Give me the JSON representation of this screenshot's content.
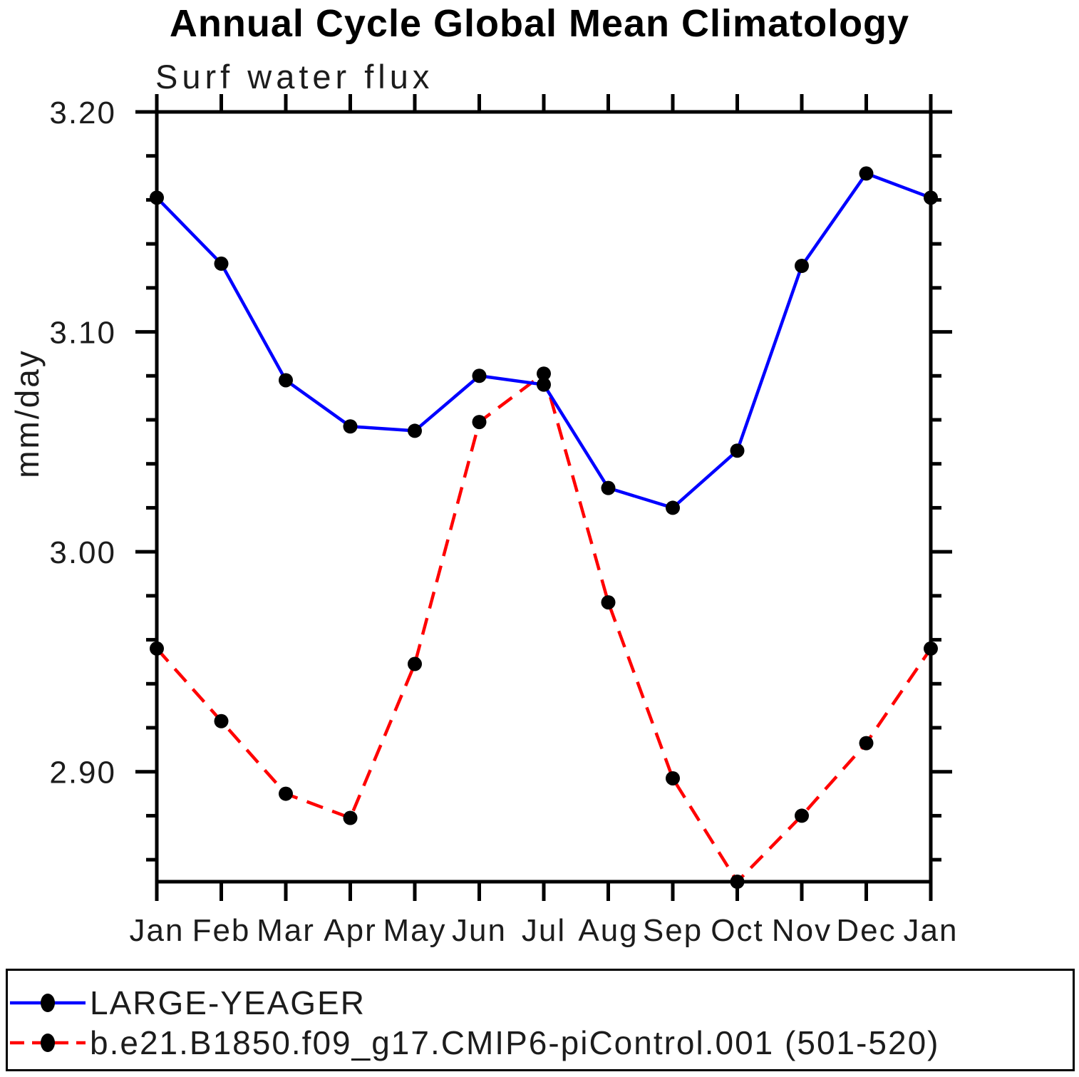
{
  "title": "Annual Cycle Global Mean Climatology",
  "subtitle": "Surf water flux",
  "y_axis_label": "mm/day",
  "colors": {
    "background": "#ffffff",
    "axis": "#000000",
    "text": "#1c1c1c",
    "series1": "#0000ff",
    "series2": "#ff0000",
    "marker": "#000000"
  },
  "legend": {
    "entries": [
      {
        "label": "LARGE-YEAGER",
        "color": "#0000ff",
        "line_style": "solid"
      },
      {
        "label": "b.e21.B1850.f09_g17.CMIP6-piControl.001 (501-520)",
        "color": "#ff0000",
        "line_style": "dashed"
      }
    ]
  },
  "chart_data": {
    "type": "line",
    "title": "Annual Cycle Global Mean Climatology",
    "subtitle": "Surf water flux",
    "ylabel": "mm/day",
    "categories": [
      "Jan",
      "Feb",
      "Mar",
      "Apr",
      "May",
      "Jun",
      "Jul",
      "Aug",
      "Sep",
      "Oct",
      "Nov",
      "Dec",
      "Jan"
    ],
    "series": [
      {
        "name": "LARGE-YEAGER",
        "color": "#0000ff",
        "line_style": "solid",
        "marker": "circle",
        "marker_color": "#000000",
        "values": [
          3.161,
          3.131,
          3.078,
          3.057,
          3.055,
          3.08,
          3.076,
          3.029,
          3.02,
          3.046,
          3.13,
          3.172,
          3.161
        ]
      },
      {
        "name": "b.e21.B1850.f09_g17.CMIP6-piControl.001 (501-520)",
        "color": "#ff0000",
        "line_style": "dashed",
        "marker": "circle",
        "marker_color": "#000000",
        "values": [
          2.956,
          2.923,
          2.89,
          2.879,
          2.949,
          3.059,
          3.081,
          2.977,
          2.897,
          2.85,
          2.88,
          2.913,
          2.956
        ]
      }
    ],
    "ylim": [
      2.85,
      3.2
    ],
    "yticks_major": [
      2.9,
      3.0,
      3.1,
      3.2
    ],
    "ytick_labels": [
      "2.90",
      "3.00",
      "3.10",
      "3.20"
    ],
    "ytick_minor_step": 0.02,
    "grid": false,
    "legend_position": "bottom-left"
  }
}
